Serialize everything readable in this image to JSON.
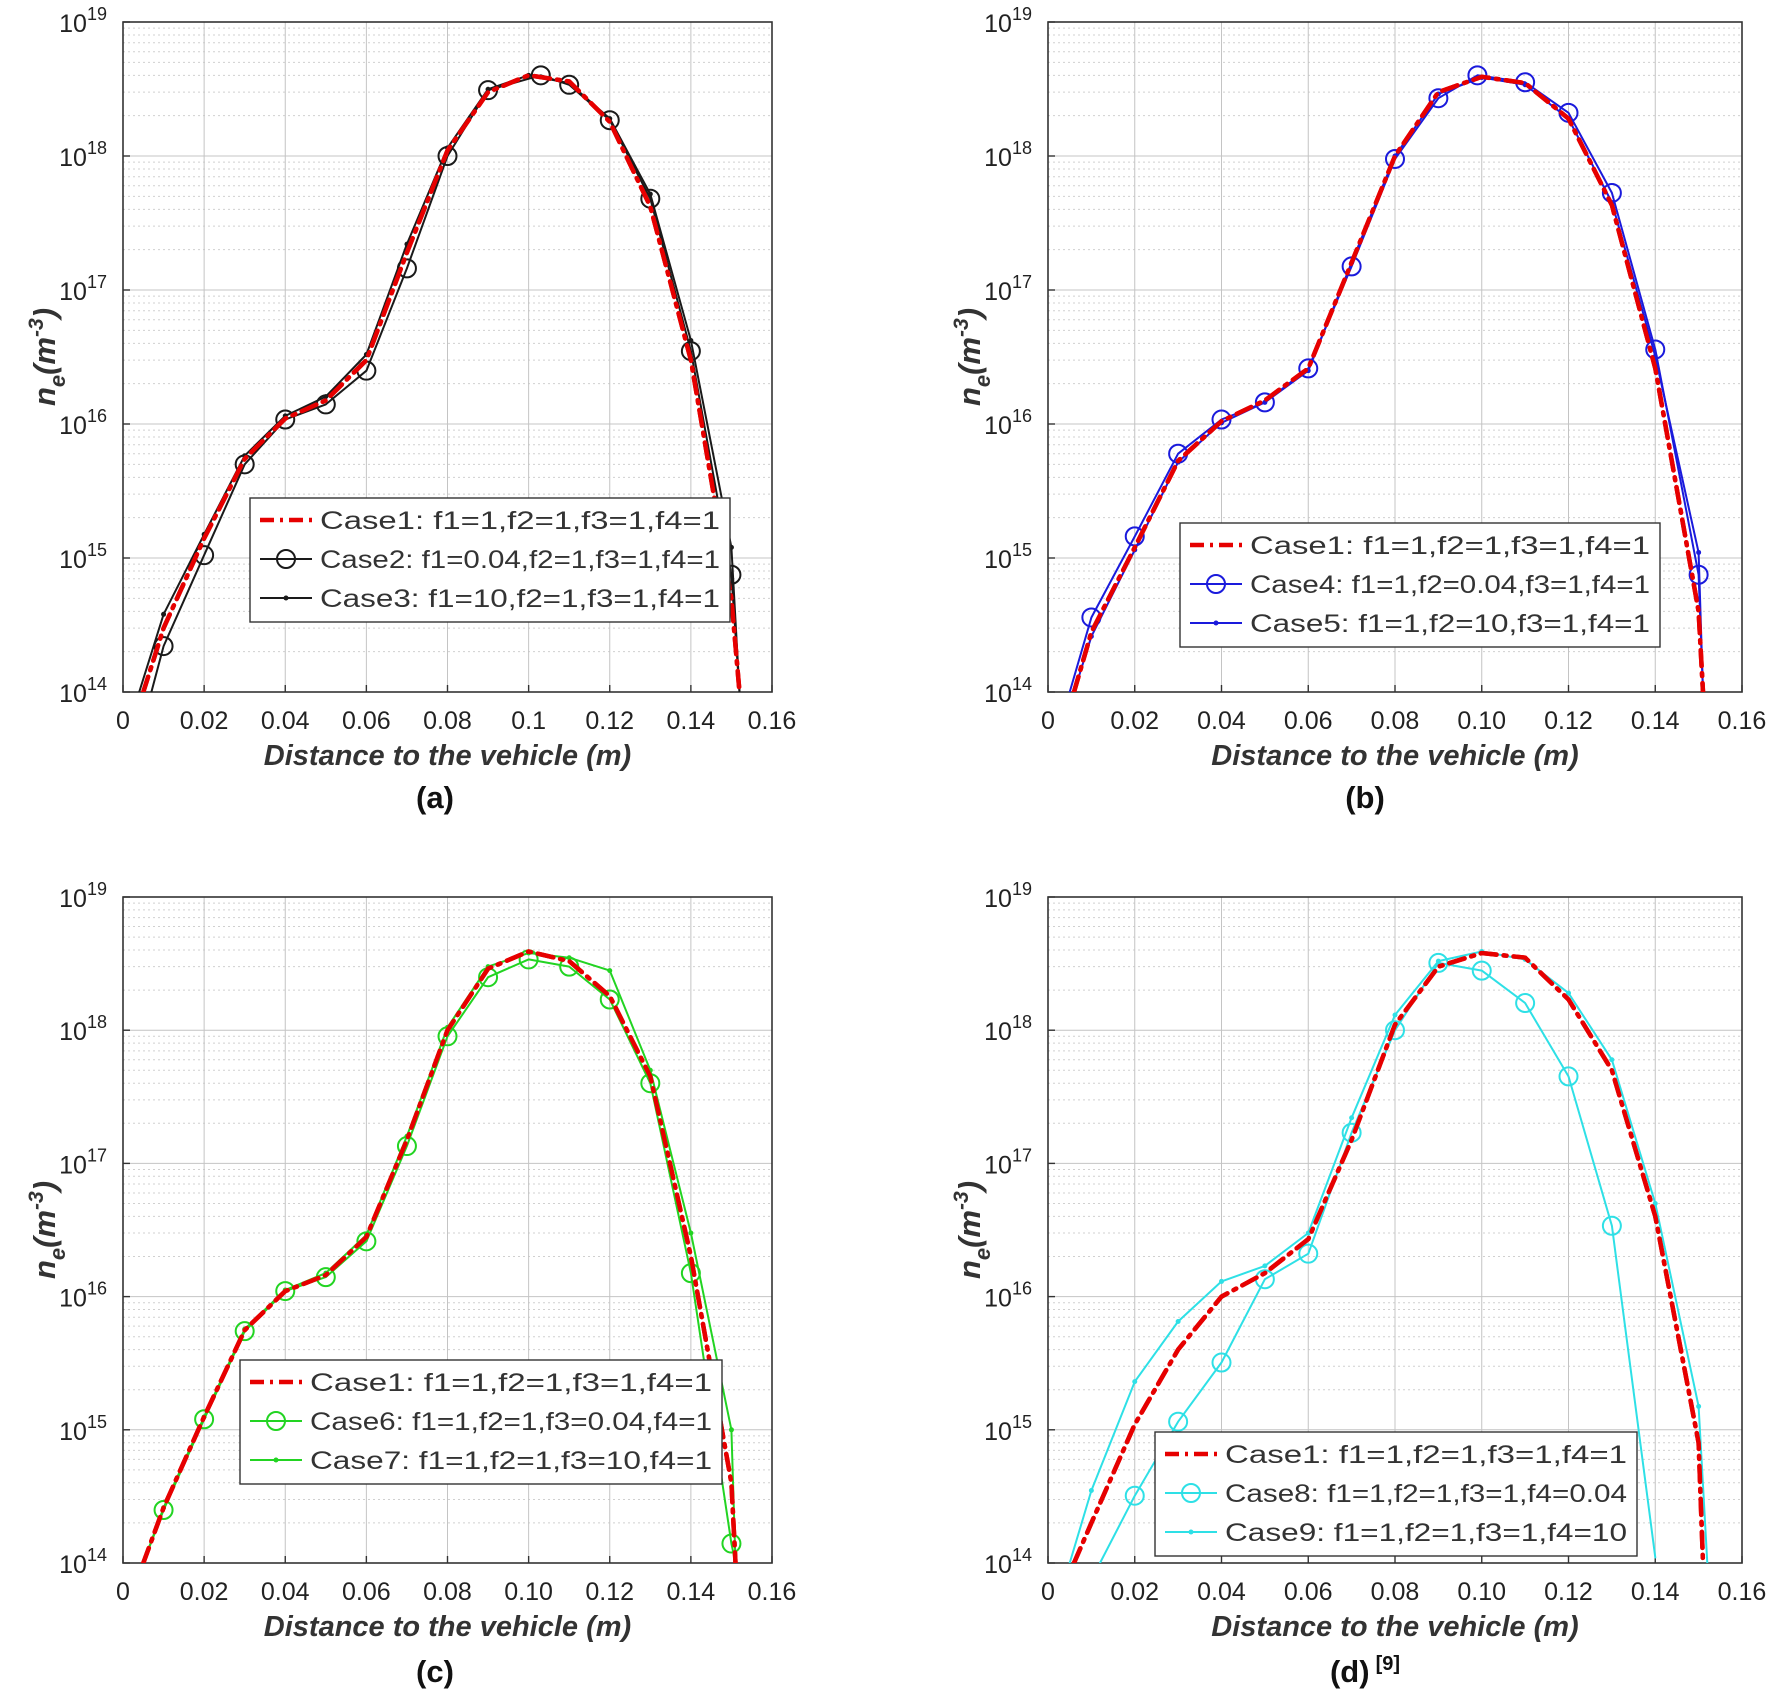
{
  "figure": {
    "reference": "[9]"
  },
  "colors": {
    "case1": "#e60000",
    "a": "#1a1a1a",
    "b": "#1a1adc",
    "c": "#22d422",
    "d": "#2ee0e6",
    "grid": "#d0d0d0",
    "axis": "#333333"
  },
  "chart_data": [
    {
      "type": "line",
      "panel": "a",
      "caption": "(a)",
      "xlabel": "Distance to the vehicle (m)",
      "ylabel_base": "n",
      "ylabel_sub": "e",
      "ylabel_unit": "(m",
      "ylabel_exp": "-3",
      "ylabel_close": ")",
      "yscale": "log",
      "xlim": [
        0,
        0.16
      ],
      "ylim_exp": [
        14,
        19
      ],
      "xticks": [
        "0",
        "0.02",
        "0.04",
        "0.06",
        "0.08",
        "0.1",
        "0.12",
        "0.14",
        "0.16"
      ],
      "yticks": [
        {
          "base": "10",
          "exp": "14"
        },
        {
          "base": "10",
          "exp": "15"
        },
        {
          "base": "10",
          "exp": "16"
        },
        {
          "base": "10",
          "exp": "17"
        },
        {
          "base": "10",
          "exp": "18"
        },
        {
          "base": "10",
          "exp": "19"
        }
      ],
      "legend_position": "lower-center",
      "series": [
        {
          "name": "Case1: f1=1,f2=1,f3=1,f4=1",
          "style": "dashdot",
          "color": "case1",
          "x": [
            0.005,
            0.01,
            0.02,
            0.03,
            0.04,
            0.05,
            0.06,
            0.07,
            0.08,
            0.09,
            0.1,
            0.11,
            0.12,
            0.13,
            0.14,
            0.15,
            0.152
          ],
          "y": [
            100000000000000.0,
            300000000000000.0,
            1400000000000000.0,
            5500000000000000.0,
            1.1e+16,
            1.5e+16,
            3e+16,
            1.9e+17,
            1.1e+18,
            3e+18,
            4e+18,
            3.6e+18,
            1.8e+18,
            4.2e+17,
            3e+16,
            500000000000000.0,
            100000000000000.0
          ]
        },
        {
          "name": "Case2: f1=0.04,f2=1,f3=1,f4=1",
          "style": "solid-circle",
          "color": "a",
          "x": [
            0.007,
            0.01,
            0.02,
            0.03,
            0.04,
            0.05,
            0.06,
            0.07,
            0.08,
            0.09,
            0.103,
            0.11,
            0.12,
            0.13,
            0.14,
            0.15,
            0.152
          ],
          "y": [
            100000000000000.0,
            220000000000000.0,
            1050000000000000.0,
            5000000000000000.0,
            1.08e+16,
            1.4e+16,
            2.5e+16,
            1.45e+17,
            1e+18,
            3.1e+18,
            4e+18,
            3.4e+18,
            1.85e+18,
            4.8e+17,
            3.5e+16,
            750000000000000.0,
            100000000000000.0
          ]
        },
        {
          "name": "Case3: f1=10,f2=1,f3=1,f4=1",
          "style": "solid-dot",
          "color": "a",
          "x": [
            0.004,
            0.01,
            0.02,
            0.03,
            0.04,
            0.05,
            0.06,
            0.07,
            0.08,
            0.09,
            0.1,
            0.11,
            0.12,
            0.13,
            0.14,
            0.15,
            0.152
          ],
          "y": [
            100000000000000.0,
            380000000000000.0,
            1500000000000000.0,
            5800000000000000.0,
            1.15e+16,
            1.6e+16,
            3.3e+16,
            2.2e+17,
            1.15e+18,
            3.15e+18,
            4e+18,
            3.5e+18,
            1.9e+18,
            5.2e+17,
            4.2e+16,
            1200000000000000.0,
            100000000000000.0
          ]
        }
      ]
    },
    {
      "type": "line",
      "panel": "b",
      "caption": "(b)",
      "xlabel": "Distance to the vehicle (m)",
      "ylabel_base": "n",
      "ylabel_sub": "e",
      "ylabel_unit": "(m",
      "ylabel_exp": "-3",
      "ylabel_close": ")",
      "yscale": "log",
      "xlim": [
        0,
        0.16
      ],
      "ylim_exp": [
        14,
        19
      ],
      "xticks": [
        "0",
        "0.02",
        "0.04",
        "0.06",
        "0.08",
        "0.10",
        "0.12",
        "0.14",
        "0.16"
      ],
      "yticks": [
        {
          "base": "10",
          "exp": "14"
        },
        {
          "base": "10",
          "exp": "15"
        },
        {
          "base": "10",
          "exp": "16"
        },
        {
          "base": "10",
          "exp": "17"
        },
        {
          "base": "10",
          "exp": "18"
        },
        {
          "base": "10",
          "exp": "19"
        }
      ],
      "legend_position": "lower-right",
      "series": [
        {
          "name": "Case1: f1=1,f2=1,f3=1,f4=1",
          "style": "dashdot",
          "color": "case1",
          "x": [
            0.006,
            0.01,
            0.02,
            0.03,
            0.04,
            0.05,
            0.06,
            0.07,
            0.08,
            0.09,
            0.1,
            0.11,
            0.12,
            0.13,
            0.14,
            0.15,
            0.151
          ],
          "y": [
            100000000000000.0,
            280000000000000.0,
            1200000000000000.0,
            5300000000000000.0,
            1.05e+16,
            1.5e+16,
            2.6e+16,
            1.6e+17,
            1e+18,
            3e+18,
            3.9e+18,
            3.5e+18,
            1.9e+18,
            4.3e+17,
            2.6e+16,
            400000000000000.0,
            100000000000000.0
          ]
        },
        {
          "name": "Case4: f1=1,f2=0.04,f3=1,f4=1",
          "style": "solid-circle",
          "color": "b",
          "x": [
            0.005,
            0.01,
            0.02,
            0.03,
            0.04,
            0.05,
            0.06,
            0.07,
            0.08,
            0.09,
            0.099,
            0.11,
            0.12,
            0.13,
            0.14,
            0.15,
            0.151
          ],
          "y": [
            100000000000000.0,
            360000000000000.0,
            1450000000000000.0,
            6000000000000000.0,
            1.08e+16,
            1.45e+16,
            2.6e+16,
            1.5e+17,
            9.5e+17,
            2.7e+18,
            4e+18,
            3.55e+18,
            2.1e+18,
            5.3e+17,
            3.6e+16,
            750000000000000.0,
            100000000000000.0
          ]
        },
        {
          "name": "Case5: f1=1,f2=10,f3=1,f4=1",
          "style": "solid-dot",
          "color": "b",
          "x": [
            0.006,
            0.01,
            0.02,
            0.03,
            0.04,
            0.05,
            0.06,
            0.07,
            0.08,
            0.09,
            0.1,
            0.11,
            0.12,
            0.13,
            0.14,
            0.15,
            0.151
          ],
          "y": [
            100000000000000.0,
            260000000000000.0,
            1150000000000000.0,
            5200000000000000.0,
            1.02e+16,
            1.45e+16,
            2.5e+16,
            1.6e+17,
            1e+18,
            2.9e+18,
            3.85e+18,
            3.4e+18,
            1.9e+18,
            4.5e+17,
            3.2e+16,
            1100000000000000.0,
            100000000000000.0
          ]
        }
      ]
    },
    {
      "type": "line",
      "panel": "c",
      "caption": "(c)",
      "xlabel": "Distance to the vehicle (m)",
      "ylabel_base": "n",
      "ylabel_sub": "e",
      "ylabel_unit": "(m",
      "ylabel_exp": "-3",
      "ylabel_close": ")",
      "yscale": "log",
      "xlim": [
        0,
        0.16
      ],
      "ylim_exp": [
        14,
        19
      ],
      "xticks": [
        "0",
        "0.02",
        "0.04",
        "0.06",
        "0.08",
        "0.10",
        "0.12",
        "0.14",
        "0.16"
      ],
      "yticks": [
        {
          "base": "10",
          "exp": "14"
        },
        {
          "base": "10",
          "exp": "15"
        },
        {
          "base": "10",
          "exp": "16"
        },
        {
          "base": "10",
          "exp": "17"
        },
        {
          "base": "10",
          "exp": "18"
        },
        {
          "base": "10",
          "exp": "19"
        }
      ],
      "legend_position": "lower-center",
      "series": [
        {
          "name": "Case1: f1=1,f2=1,f3=1,f4=1",
          "style": "dashdot",
          "color": "case1",
          "x": [
            0.005,
            0.01,
            0.02,
            0.03,
            0.04,
            0.05,
            0.06,
            0.07,
            0.08,
            0.09,
            0.1,
            0.11,
            0.12,
            0.13,
            0.14,
            0.15,
            0.151
          ],
          "y": [
            100000000000000.0,
            260000000000000.0,
            1250000000000000.0,
            5600000000000000.0,
            1.1e+16,
            1.45e+16,
            2.8e+16,
            1.5e+17,
            1e+18,
            2.9e+18,
            3.9e+18,
            3.3e+18,
            1.8e+18,
            4.5e+17,
            2e+16,
            400000000000000.0,
            100000000000000.0
          ]
        },
        {
          "name": "Case6: f1=1,f2=1,f3=0.04,f4=1",
          "style": "solid-circle",
          "color": "c",
          "x": [
            0.005,
            0.01,
            0.02,
            0.03,
            0.04,
            0.05,
            0.06,
            0.07,
            0.08,
            0.09,
            0.1,
            0.11,
            0.12,
            0.13,
            0.14,
            0.15,
            0.151
          ],
          "y": [
            100000000000000.0,
            250000000000000.0,
            1200000000000000.0,
            5500000000000000.0,
            1.1e+16,
            1.4e+16,
            2.6e+16,
            1.35e+17,
            9e+17,
            2.5e+18,
            3.4e+18,
            3e+18,
            1.7e+18,
            4e+17,
            1.5e+16,
            140000000000000.0,
            100000000000000.0
          ]
        },
        {
          "name": "Case7: f1=1,f2=1,f3=10,f4=1",
          "style": "solid-dot",
          "color": "c",
          "x": [
            0.005,
            0.01,
            0.02,
            0.03,
            0.04,
            0.05,
            0.06,
            0.07,
            0.08,
            0.09,
            0.1,
            0.11,
            0.12,
            0.13,
            0.14,
            0.15,
            0.151
          ],
          "y": [
            100000000000000.0,
            260000000000000.0,
            1250000000000000.0,
            5700000000000000.0,
            1.12e+16,
            1.5e+16,
            2.9e+16,
            1.6e+17,
            1.05e+18,
            3e+18,
            3.8e+18,
            3.5e+18,
            2.8e+18,
            5e+17,
            3e+16,
            1000000000000000.0,
            100000000000000.0
          ]
        }
      ]
    },
    {
      "type": "line",
      "panel": "d",
      "caption": "(d)",
      "xlabel": "Distance to the vehicle (m)",
      "ylabel_base": "n",
      "ylabel_sub": "e",
      "ylabel_unit": "(m",
      "ylabel_exp": "-3",
      "ylabel_close": ")",
      "yscale": "log",
      "xlim": [
        0,
        0.16
      ],
      "ylim_exp": [
        14,
        19
      ],
      "xticks": [
        "0",
        "0.02",
        "0.04",
        "0.06",
        "0.08",
        "0.10",
        "0.12",
        "0.14",
        "0.16"
      ],
      "yticks": [
        {
          "base": "10",
          "exp": "14"
        },
        {
          "base": "10",
          "exp": "15"
        },
        {
          "base": "10",
          "exp": "16"
        },
        {
          "base": "10",
          "exp": "17"
        },
        {
          "base": "10",
          "exp": "18"
        },
        {
          "base": "10",
          "exp": "19"
        }
      ],
      "legend_position": "lower-center",
      "series": [
        {
          "name": "Case1: f1=1,f2=1,f3=1,f4=1",
          "style": "dashdot",
          "color": "case1",
          "x": [
            0.006,
            0.01,
            0.02,
            0.03,
            0.04,
            0.05,
            0.06,
            0.07,
            0.08,
            0.09,
            0.1,
            0.11,
            0.12,
            0.13,
            0.14,
            0.15,
            0.151
          ],
          "y": [
            100000000000000.0,
            200000000000000.0,
            1100000000000000.0,
            4000000000000000.0,
            1e+16,
            1.5e+16,
            2.7e+16,
            1.5e+17,
            1.1e+18,
            3e+18,
            3.8e+18,
            3.5e+18,
            1.7e+18,
            5e+17,
            4e+16,
            800000000000000.0,
            100000000000000.0
          ]
        },
        {
          "name": "Case8: f1=1,f2=1,f3=1,f4=0.04",
          "style": "solid-circle",
          "color": "d",
          "x": [
            0.012,
            0.02,
            0.03,
            0.04,
            0.05,
            0.06,
            0.07,
            0.08,
            0.09,
            0.1,
            0.11,
            0.12,
            0.13,
            0.14
          ],
          "y": [
            100000000000000.0,
            320000000000000.0,
            1150000000000000.0,
            3200000000000000.0,
            1.35e+16,
            2.1e+16,
            1.7e+17,
            1e+18,
            3.2e+18,
            2.8e+18,
            1.6e+18,
            4.5e+17,
            3.4e+16,
            110000000000000.0
          ]
        },
        {
          "name": "Case9: f1=1,f2=1,f3=1,f4=10",
          "style": "solid-dot",
          "color": "d",
          "x": [
            0.005,
            0.01,
            0.02,
            0.03,
            0.04,
            0.05,
            0.06,
            0.07,
            0.08,
            0.09,
            0.1,
            0.11,
            0.12,
            0.13,
            0.14,
            0.15,
            0.152
          ],
          "y": [
            100000000000000.0,
            350000000000000.0,
            2300000000000000.0,
            6500000000000000.0,
            1.3e+16,
            1.7e+16,
            3e+16,
            2.2e+17,
            1.3e+18,
            3.3e+18,
            3.9e+18,
            3.4e+18,
            1.9e+18,
            6e+17,
            5e+16,
            1500000000000000.0,
            100000000000000.0
          ]
        }
      ]
    }
  ]
}
